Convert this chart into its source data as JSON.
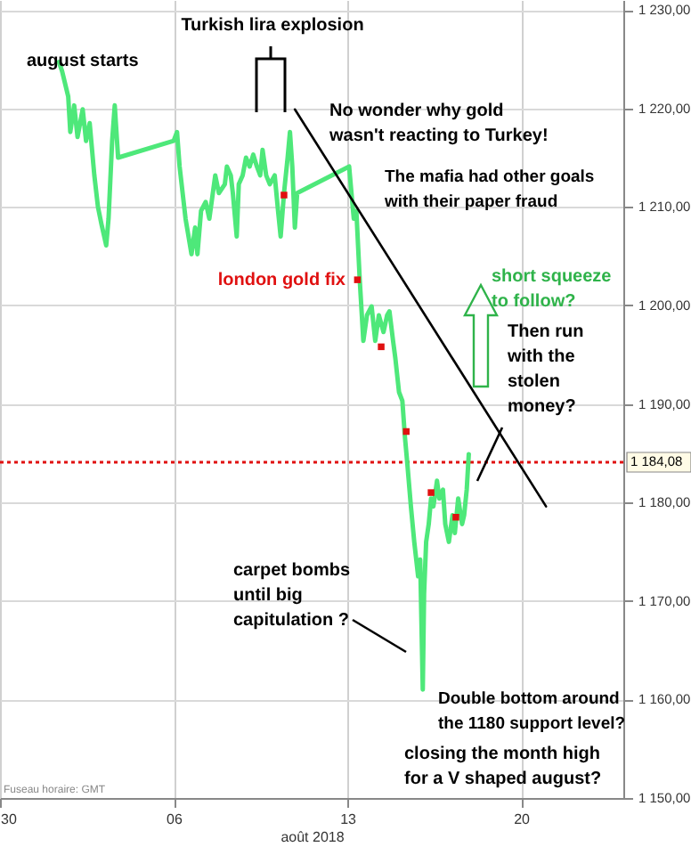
{
  "chart_data": {
    "type": "line",
    "xlabel": "août 2018",
    "x": [
      "2018-08-01T09:00",
      "2018-08-01T12:00",
      "2018-08-01T18:00",
      "2018-08-01T20:00",
      "2018-08-01T23:45",
      "2018-08-02T03:00",
      "2018-08-02T08:00",
      "2018-08-02T11:15",
      "2018-08-02T14:45",
      "2018-08-02T19:15",
      "2018-08-02T22:45",
      "2018-08-03T02:15",
      "2018-08-03T06:45",
      "2018-08-03T09:00",
      "2018-08-03T12:30",
      "2018-08-03T15:00",
      "2018-08-03T18:15",
      "2018-08-06T00:00",
      "2018-08-06T03:15",
      "2018-08-06T05:45",
      "2018-08-06T11:30",
      "2018-08-06T17:15",
      "2018-08-06T20:45",
      "2018-08-06T23:00",
      "2018-08-07T02:30",
      "2018-08-07T07:00",
      "2018-08-07T10:30",
      "2018-08-07T16:15",
      "2018-08-07T19:45",
      "2018-08-08T01:30",
      "2018-08-08T03:30",
      "2018-08-08T07:15",
      "2018-08-08T09:15",
      "2018-08-08T13:00",
      "2018-08-08T15:00",
      "2018-08-08T18:45",
      "2018-08-08T22:00",
      "2018-08-09T01:30",
      "2018-08-09T05:00",
      "2018-08-09T08:30",
      "2018-08-09T11:45",
      "2018-08-09T14:00",
      "2018-08-09T17:30",
      "2018-08-09T21:00",
      "2018-08-10T01:45",
      "2018-08-10T05:00",
      "2018-08-10T07:30",
      "2018-08-10T10:45",
      "2018-08-10T14:15",
      "2018-08-10T16:30",
      "2018-08-10T18:45",
      "2018-08-10T21:15",
      "2018-08-10T23:30",
      "2018-08-13T01:45",
      "2018-08-13T04:00",
      "2018-08-13T06:15",
      "2018-08-13T08:45",
      "2018-08-13T12:00",
      "2018-08-13T15:30",
      "2018-08-13T19:00",
      "2018-08-13T23:30",
      "2018-08-14T03:00",
      "2018-08-14T06:30",
      "2018-08-14T11:00",
      "2018-08-14T14:30",
      "2018-08-14T16:45",
      "2018-08-14T20:15",
      "2018-08-14T22:30",
      "2018-08-15T02:00",
      "2018-08-15T05:15",
      "2018-08-15T07:45",
      "2018-08-15T10:00",
      "2018-08-15T13:30",
      "2018-08-15T16:45",
      "2018-08-15T20:30",
      "2018-08-15T22:30",
      "2018-08-16T01:00",
      "2018-08-16T02:15",
      "2018-08-16T04:15",
      "2018-08-16T06:45",
      "2018-08-16T09:00",
      "2018-08-16T11:15",
      "2018-08-16T14:45",
      "2018-08-16T17:00",
      "2018-08-16T20:30",
      "2018-08-16T22:45",
      "2018-08-17T02:15",
      "2018-08-17T05:45",
      "2018-08-17T08:00",
      "2018-08-17T11:15",
      "2018-08-17T15:00",
      "2018-08-17T17:00",
      "2018-08-17T19:30",
      "2018-08-17T21:30"
    ],
    "series": [
      {
        "type": "line",
        "color": "#4ee87a",
        "values": [
          1224.7,
          1223.8,
          1221.2,
          1217.6,
          1220.3,
          1217.1,
          1219.9,
          1216.7,
          1218.5,
          1213.2,
          1210.0,
          1208.2,
          1206.1,
          1208.8,
          1216.7,
          1220.3,
          1215.0,
          1216.7,
          1217.6,
          1214.1,
          1208.8,
          1205.2,
          1207.9,
          1205.2,
          1209.6,
          1210.5,
          1208.8,
          1213.2,
          1211.4,
          1212.3,
          1214.1,
          1213.2,
          1211.4,
          1207.0,
          1212.3,
          1213.2,
          1215.0,
          1214.1,
          1215.3,
          1214.1,
          1213.2,
          1215.8,
          1213.2,
          1212.3,
          1213.2,
          1209.6,
          1207.0,
          1211.4,
          1215.0,
          1217.6,
          1214.1,
          1207.9,
          1211.4,
          1214.1,
          1211.4,
          1208.8,
          1209.6,
          1202.6,
          1196.4,
          1199.0,
          1199.9,
          1196.4,
          1199.0,
          1197.3,
          1199.0,
          1199.4,
          1196.4,
          1194.6,
          1191.2,
          1190.3,
          1186.6,
          1184.0,
          1179.6,
          1176.0,
          1172.5,
          1174.2,
          1161.0,
          1170.7,
          1176.0,
          1177.8,
          1180.4,
          1179.6,
          1182.2,
          1180.4,
          1181.3,
          1177.8,
          1176.0,
          1178.7,
          1176.9,
          1180.4,
          1177.8,
          1178.7,
          1181.3,
          1184.9
        ]
      },
      {
        "type": "scatter",
        "name": "london gold fix",
        "color": "#e01010",
        "marker": "square",
        "x": [
          "2018-08-10T10:45",
          "2018-08-13T09:45",
          "2018-08-14T08:45",
          "2018-08-15T09:00",
          "2018-08-16T09:00",
          "2018-08-17T09:00"
        ],
        "values": [
          1211.2,
          1202.6,
          1195.8,
          1187.2,
          1181.0,
          1178.5
        ]
      },
      {
        "type": "line",
        "color": "#000000",
        "x": [
          "2018-08-10T21:15",
          "2018-08-21T00:15"
        ],
        "values": [
          1219.9,
          1179.6
        ]
      }
    ],
    "xlim": [
      "2018-07-30",
      "2018-08-24T03:00"
    ],
    "xticks": [
      {
        "value": "2018-07-30",
        "label": "30"
      },
      {
        "value": "2018-08-06",
        "label": "06"
      },
      {
        "value": "2018-08-13",
        "label": "13"
      },
      {
        "value": "2018-08-20",
        "label": "20"
      }
    ],
    "ylim": [
      1150,
      1231
    ],
    "yticks": [
      {
        "value": 1150,
        "label": "1 150,00"
      },
      {
        "value": 1160,
        "label": "1 160,00"
      },
      {
        "value": 1170,
        "label": "1 170,00"
      },
      {
        "value": 1180,
        "label": "1 180,00"
      },
      {
        "value": 1190,
        "label": "1 190,00"
      },
      {
        "value": 1200,
        "label": "1 200,00"
      },
      {
        "value": 1210,
        "label": "1 210,00"
      },
      {
        "value": 1220,
        "label": "1 220,00"
      },
      {
        "value": 1230,
        "label": "1 230,00"
      }
    ],
    "grid": true,
    "ref_lines": [
      {
        "axis": "y",
        "value": 1184.08,
        "label": "1 184,08",
        "color": "#e01010",
        "line_style": "dotted"
      }
    ],
    "annotations": [
      "Turkish lira explosion",
      "august starts",
      "No wonder why gold\nwasn't reacting to Turkey!",
      "The mafia had other goals\nwith their paper fraud",
      "short squeeze\nto follow?",
      "Then run\nwith the\nstolen\nmoney?",
      "carpet bombs\nuntil big\ncapitulation ?",
      "Double bottom around\nthe 1180 support level?",
      "closing the month high\nfor a V  shaped august?",
      "Fuseau horaire: GMT"
    ]
  }
}
